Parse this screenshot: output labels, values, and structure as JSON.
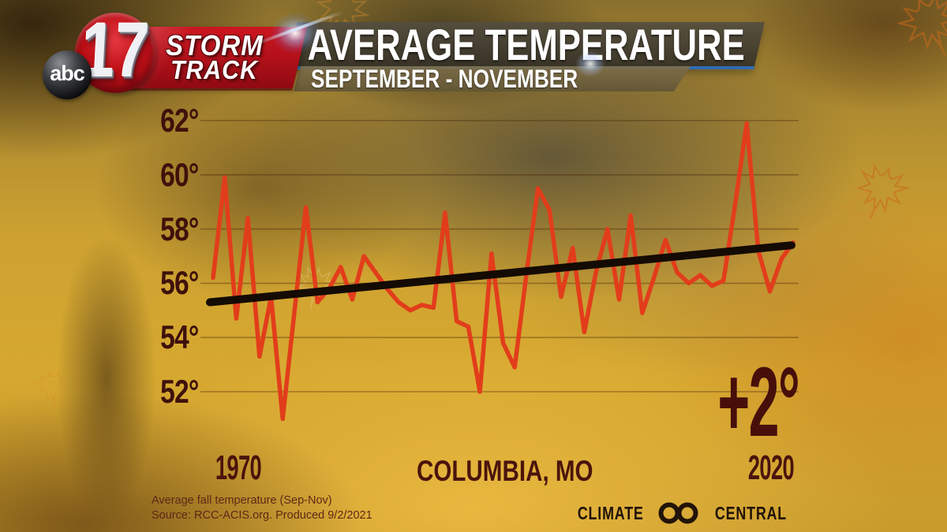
{
  "branding": {
    "abc_logo": "abc",
    "channel_number": "17",
    "storm": "STORM",
    "track": "TRACK"
  },
  "header": {
    "title": "AVERAGE TEMPERATURE",
    "subtitle": "SEPTEMBER - NOVEMBER"
  },
  "chart_data": {
    "type": "line",
    "title": "AVERAGE TEMPERATURE",
    "subtitle": "SEPTEMBER - NOVEMBER",
    "location": "COLUMBIA, MO",
    "x_start_label": "1970",
    "x_end_label": "2020",
    "trend_label": "+2°",
    "ytick_labels": [
      "62°",
      "60°",
      "58°",
      "56°",
      "54°",
      "52°"
    ],
    "yticks": [
      62,
      60,
      58,
      56,
      54,
      52
    ],
    "ylim": [
      50.5,
      62.5
    ],
    "xlim": [
      1970,
      2020
    ],
    "grid": true,
    "legend": "none",
    "years": [
      1970,
      1971,
      1972,
      1973,
      1974,
      1975,
      1976,
      1977,
      1978,
      1979,
      1980,
      1981,
      1982,
      1983,
      1984,
      1985,
      1986,
      1987,
      1988,
      1989,
      1990,
      1991,
      1992,
      1993,
      1994,
      1995,
      1996,
      1997,
      1998,
      1999,
      2000,
      2001,
      2002,
      2003,
      2004,
      2005,
      2006,
      2007,
      2008,
      2009,
      2010,
      2011,
      2012,
      2013,
      2014,
      2015,
      2016,
      2017,
      2018,
      2019,
      2020
    ],
    "values": [
      56.2,
      59.9,
      54.7,
      58.4,
      53.3,
      55.5,
      51.0,
      54.9,
      58.8,
      55.3,
      55.8,
      56.6,
      55.4,
      57.0,
      56.4,
      55.8,
      55.3,
      55.0,
      55.2,
      55.1,
      58.6,
      54.6,
      54.4,
      52.0,
      57.1,
      53.8,
      52.9,
      56.3,
      59.5,
      58.7,
      55.5,
      57.3,
      54.2,
      56.4,
      58.0,
      55.4,
      58.5,
      54.9,
      56.2,
      57.6,
      56.4,
      56.0,
      56.3,
      55.9,
      56.1,
      58.9,
      61.9,
      57.2,
      55.7,
      56.9,
      57.5
    ],
    "trend": {
      "start_year": 1970,
      "end_year": 2020,
      "start_value": 55.3,
      "end_value": 57.4
    },
    "line_color": "#e23d1b",
    "trend_color": "#140b04",
    "axis_text_color": "#3f110b"
  },
  "footer": {
    "note": "Average fall temperature (Sep-Nov)",
    "source": "Source: RCC-ACIS.org. Produced 9/2/2021",
    "climate_left": "CLIMATE",
    "climate_right": "CENTRAL"
  }
}
